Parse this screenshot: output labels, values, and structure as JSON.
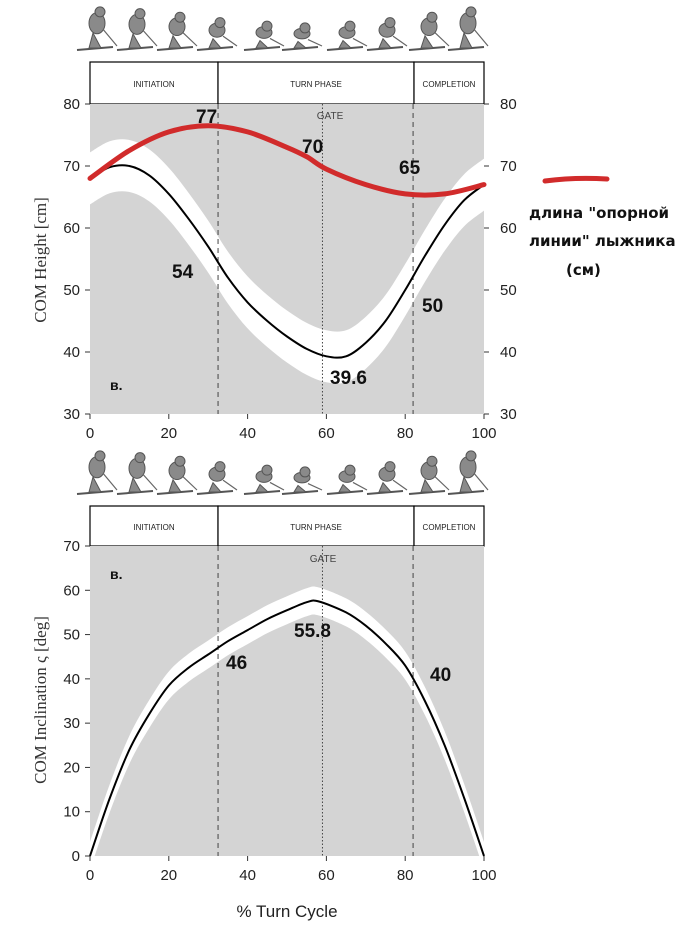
{
  "colors": {
    "red_line": "#d12b2b",
    "band": "#ffffff",
    "plot_bg": "#d4d4d4",
    "mean_line": "#000000"
  },
  "phases": {
    "initiation": "INITIATION",
    "turn": "TURN PHASE",
    "completion": "COMPLETION",
    "gate": "GATE"
  },
  "x_axis_title": "% Turn Cycle",
  "legend": {
    "line1": "длина \"опорной",
    "line2": "линии\" лыжника",
    "line3": "(см)"
  },
  "chart_data": [
    {
      "type": "line",
      "ylabel": "COM Height [cm]",
      "xlim": [
        0,
        100
      ],
      "ylim": [
        30,
        80
      ],
      "x_ticks": [
        0,
        20,
        40,
        60,
        80,
        100
      ],
      "y_ticks": [
        30,
        40,
        50,
        60,
        70,
        80
      ],
      "right_axis_ticks": [
        30,
        40,
        50,
        60,
        70,
        80
      ],
      "phase_boundaries": [
        32.5,
        59,
        82
      ],
      "panel_label": "в.",
      "series": [
        {
          "name": "длина \"опорной линии\" лыжника (см)",
          "x": [
            0,
            10,
            20,
            30,
            40,
            50,
            55,
            60,
            70,
            80,
            90,
            100
          ],
          "values": [
            68,
            72.5,
            75.5,
            76.5,
            75.5,
            73,
            71.5,
            69.5,
            67,
            65.5,
            65.5,
            67
          ]
        },
        {
          "x": [
            0,
            5,
            10,
            15,
            20,
            25,
            30,
            35,
            40,
            45,
            50,
            55,
            60,
            65,
            70,
            75,
            80,
            85,
            90,
            95,
            100
          ],
          "values": [
            68,
            69.8,
            70,
            68.5,
            65.5,
            61.5,
            57,
            52,
            48,
            45,
            42.5,
            40.5,
            39.3,
            39.3,
            41.5,
            45,
            50,
            55.5,
            60.5,
            64.5,
            67
          ]
        }
      ],
      "annotations": [
        "77",
        "70",
        "65",
        "54",
        "50",
        "39.6"
      ]
    },
    {
      "type": "line",
      "ylabel": "COM Inclination ς [deg]",
      "xlim": [
        0,
        100
      ],
      "ylim": [
        0,
        70
      ],
      "x_ticks": [
        0,
        20,
        40,
        60,
        80,
        100
      ],
      "y_ticks": [
        0,
        10,
        20,
        30,
        40,
        50,
        60,
        70
      ],
      "phase_boundaries": [
        32.5,
        59,
        82
      ],
      "panel_label": "в.",
      "series": [
        {
          "x": [
            0,
            5,
            10,
            15,
            20,
            25,
            30,
            35,
            40,
            45,
            50,
            55,
            58,
            65,
            70,
            75,
            80,
            85,
            90,
            95,
            100
          ],
          "values": [
            0,
            13,
            24,
            32,
            38.5,
            42.5,
            45.5,
            48.5,
            51,
            53.5,
            55.5,
            57.3,
            57.5,
            55,
            52,
            48,
            43,
            35,
            25,
            13,
            0
          ]
        }
      ],
      "annotations": [
        "46",
        "55.8",
        "40"
      ]
    }
  ]
}
